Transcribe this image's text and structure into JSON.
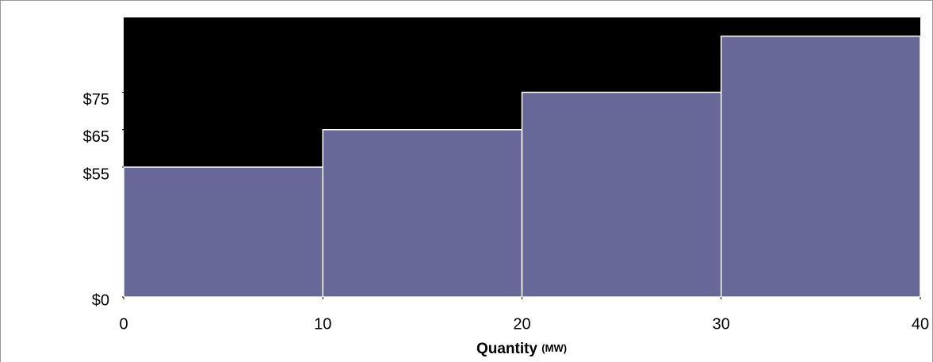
{
  "chart_data": {
    "type": "histogram",
    "bins": [
      0,
      10,
      20,
      30,
      40
    ],
    "values": [
      55,
      65,
      75,
      90
    ],
    "color": "#676798",
    "background": "#000000",
    "xlim": [
      0,
      40
    ],
    "xticks": [
      0,
      10,
      20,
      30,
      40
    ],
    "ylim": [
      0,
      95
    ],
    "yticks": [
      {
        "value": 0,
        "label": "$0"
      },
      {
        "value": 55,
        "label": "$55"
      },
      {
        "value": 65,
        "label": "$65"
      },
      {
        "value": 75,
        "label": "$75"
      }
    ],
    "xlabel": "Quantity",
    "xlabel_unit": "(MW)"
  }
}
